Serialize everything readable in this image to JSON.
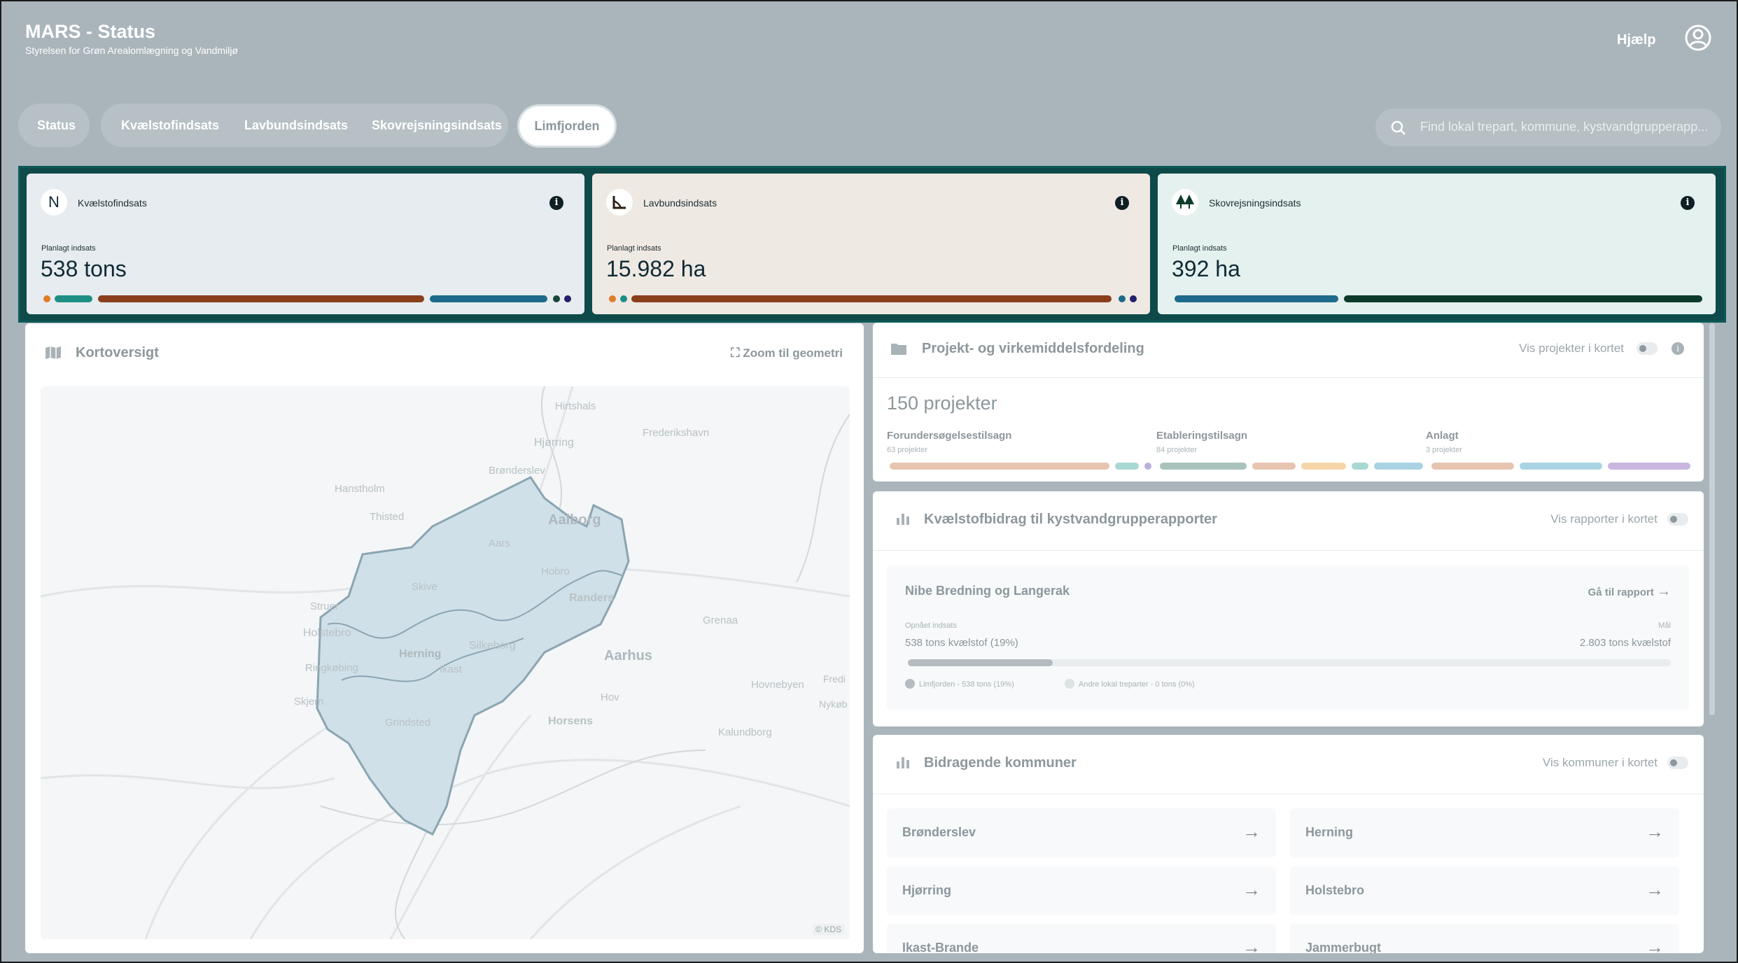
{
  "header": {
    "title": "MARS - Status",
    "subtitle": "Styrelsen for Grøn Arealomlægning og Vandmiljø",
    "help": "Hjælp"
  },
  "tabs": {
    "status": "Status",
    "kvaelstof": "Kvælstofindsats",
    "lavbund": "Lavbundsindsats",
    "skov": "Skovrejsningsindsats",
    "active": "Limfjorden"
  },
  "search": {
    "placeholder": "Find lokal trepart, kommune, kystvandgrupperapp..."
  },
  "kpis": [
    {
      "icon": "N",
      "label": "Kvælstofindsats",
      "plan_label": "Planlagt indsats",
      "value": "538 tons",
      "bg": "#e6ecef"
    },
    {
      "icon": "lavbund-icon",
      "label": "Lavbundsindsats",
      "plan_label": "Planlagt indsats",
      "value": "15.982 ha",
      "bg": "#efe9e3"
    },
    {
      "icon": "tree-icon",
      "label": "Skovrejsningsindsats",
      "plan_label": "Planlagt indsats",
      "value": "392 ha",
      "bg": "#e5f1ef"
    }
  ],
  "map_panel": {
    "title": "Kortoversigt",
    "zoom": "Zoom til geometri",
    "places": [
      "Hirtshals",
      "Frederikshavn",
      "Hjørring",
      "Brønderslev",
      "Hanstholm",
      "Aalborg",
      "Aars",
      "Thisted",
      "Hobro",
      "Skive",
      "Struer",
      "Randers",
      "Grenaa",
      "Holstebro",
      "Silkeborg",
      "Herning",
      "Aarhus",
      "Ringkøbing",
      "Ikast",
      "Hovnebyen",
      "Skjern",
      "Grindsted",
      "Horsens",
      "Kalundborg",
      "Fredi",
      "Nykøb",
      "Hov"
    ],
    "copyright": "© KDS"
  },
  "projects_panel": {
    "title": "Projekt- og virkemiddelsfordeling",
    "toggle_label": "Vis projekter i kortet",
    "count": "150 projekter",
    "groups": [
      {
        "label": "Forundersøgelsestilsagn",
        "sub": "63 projekter"
      },
      {
        "label": "Etableringstilsagn",
        "sub": "84 projekter"
      },
      {
        "label": "Anlagt",
        "sub": "3 projekter"
      }
    ]
  },
  "n_panel": {
    "title": "Kvælstofbidrag til kystvandgrupperapporter",
    "toggle_label": "Vis rapporter i kortet",
    "report": {
      "name": "Nibe Bredning og Langerak",
      "link": "Gå til rapport",
      "achieved_label": "Opnået indsats",
      "achieved_value": "538 tons kvælstof (19%)",
      "goal_label": "Mål",
      "goal_value": "2.803 tons kvælstof",
      "progress": 0.19,
      "legend_a": "Limfjorden - 538 tons (19%)",
      "legend_b": "Andre lokal treparter - 0 tons (0%)"
    }
  },
  "mun_panel": {
    "title": "Bidragende kommuner",
    "toggle_label": "Vis kommuner i kortet",
    "items": [
      "Brønderslev",
      "Herning",
      "Hjørring",
      "Holstebro",
      "Ikast-Brande",
      "Jammerbugt"
    ]
  },
  "colors": {
    "accent": "#0f4a4a",
    "header_bg": "#aab5bb"
  }
}
